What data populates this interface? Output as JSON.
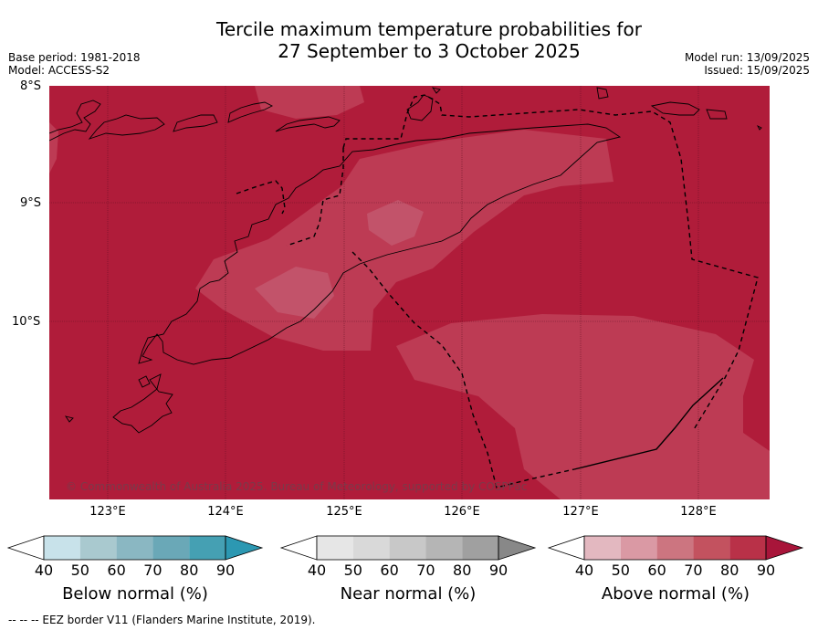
{
  "header": {
    "title_line1": "Tercile maximum temperature probabilities for",
    "title_line2": "27 September to 3 October 2025",
    "base_period": "Base period: 1981-2018",
    "model": "Model: ACCESS-S2",
    "model_run": "Model run: 13/09/2025",
    "issued": "Issued: 15/09/2025"
  },
  "map": {
    "lat_labels": [
      "8°S",
      "9°S",
      "10°S"
    ],
    "lon_labels": [
      "123°E",
      "124°E",
      "125°E",
      "126°E",
      "127°E",
      "128°E"
    ],
    "copyright": "© Commonwealth of Australia 2025. Bureau of Meteorology, supported by COSPPac",
    "colors": {
      "above_90": "#b01c3a",
      "above_80": "#bd3b54",
      "above_70": "#c2536a",
      "land_outline": "#000000"
    }
  },
  "colorbars": [
    {
      "label": "Below normal (%)",
      "ticks": [
        "40",
        "50",
        "60",
        "70",
        "80",
        "90"
      ],
      "colors": [
        "#ffffff",
        "#c8e2ea",
        "#a9c9cf",
        "#8ab7c2",
        "#6aa8b7",
        "#45a0b3",
        "#2c98b2"
      ]
    },
    {
      "label": "Near normal (%)",
      "ticks": [
        "40",
        "50",
        "60",
        "70",
        "80",
        "90"
      ],
      "colors": [
        "#ffffff",
        "#e6e6e6",
        "#d9d9d9",
        "#c8c8c8",
        "#b5b5b5",
        "#a0a0a0",
        "#888888"
      ]
    },
    {
      "label": "Above normal (%)",
      "ticks": [
        "40",
        "50",
        "60",
        "70",
        "80",
        "90"
      ],
      "colors": [
        "#ffffff",
        "#e3b8c0",
        "#da99a4",
        "#cc7580",
        "#c3525f",
        "#b93148",
        "#a8153a"
      ]
    }
  ],
  "footnote": "--  --  -- EEZ border V11 (Flanders Marine Institute, 2019)."
}
